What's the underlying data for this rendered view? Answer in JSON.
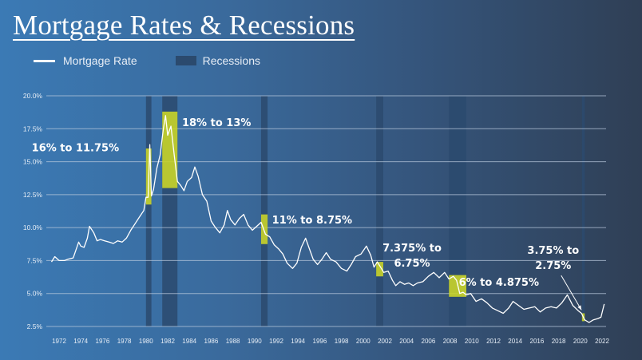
{
  "title": "Mortgage Rates & Recessions",
  "legend": {
    "line_label": "Mortgage Rate",
    "band_label": "Recessions"
  },
  "colors": {
    "line": "#ffffff",
    "recession": "#2b4a6e",
    "highlight": "#c9d42a",
    "grid": "#b8c8dc"
  },
  "chart_data": {
    "type": "line",
    "title": "Mortgage Rates & Recessions",
    "xlabel": "",
    "ylabel": "",
    "ylim": [
      2.5,
      20.0
    ],
    "xlim": [
      1971,
      2022.5
    ],
    "grid": true,
    "legend_position": "top-left",
    "y_ticks": [
      "2.5%",
      "5.0%",
      "7.5%",
      "10.0%",
      "12.5%",
      "15.0%",
      "17.5%",
      "20.0%"
    ],
    "y_tick_values": [
      2.5,
      5.0,
      7.5,
      10.0,
      12.5,
      15.0,
      17.5,
      20.0
    ],
    "x_ticks": [
      "1972",
      "1974",
      "1976",
      "1978",
      "1980",
      "1982",
      "1984",
      "1986",
      "1988",
      "1990",
      "1992",
      "1994",
      "1996",
      "1998",
      "2000",
      "2002",
      "2004",
      "2006",
      "2008",
      "2010",
      "2012",
      "2014",
      "2016",
      "2018",
      "2020",
      "2022"
    ],
    "series": [
      {
        "name": "Mortgage Rate",
        "x": [
          1971.3,
          1971.6,
          1972.0,
          1972.5,
          1972.8,
          1973.3,
          1973.8,
          1974.0,
          1974.3,
          1974.6,
          1974.8,
          1975.2,
          1975.5,
          1975.8,
          1976.2,
          1976.6,
          1977.0,
          1977.4,
          1977.8,
          1978.2,
          1978.6,
          1979.0,
          1979.4,
          1979.8,
          1980.0,
          1980.2,
          1980.35,
          1980.5,
          1980.7,
          1981.0,
          1981.3,
          1981.6,
          1981.8,
          1982.0,
          1982.3,
          1982.6,
          1982.9,
          1983.2,
          1983.5,
          1983.8,
          1984.2,
          1984.5,
          1984.8,
          1985.2,
          1985.6,
          1986.0,
          1986.4,
          1986.8,
          1987.2,
          1987.5,
          1987.8,
          1988.2,
          1988.6,
          1989.0,
          1989.4,
          1989.8,
          1990.2,
          1990.6,
          1991.0,
          1991.4,
          1991.8,
          1992.2,
          1992.6,
          1993.0,
          1993.5,
          1993.9,
          1994.3,
          1994.7,
          1995.0,
          1995.4,
          1995.8,
          1996.2,
          1996.6,
          1997.0,
          1997.5,
          1998.0,
          1998.5,
          1998.9,
          1999.3,
          1999.8,
          2000.3,
          2000.7,
          2001.0,
          2001.3,
          2001.6,
          2001.9,
          2002.3,
          2002.7,
          2003.0,
          2003.4,
          2003.8,
          2004.2,
          2004.6,
          2005.0,
          2005.5,
          2006.0,
          2006.5,
          2007.0,
          2007.5,
          2007.9,
          2008.3,
          2008.6,
          2008.9,
          2009.2,
          2009.5,
          2009.9,
          2010.4,
          2010.9,
          2011.4,
          2011.9,
          2012.4,
          2012.9,
          2013.4,
          2013.8,
          2014.3,
          2014.8,
          2015.3,
          2015.8,
          2016.3,
          2016.8,
          2017.3,
          2017.8,
          2018.3,
          2018.8,
          2019.3,
          2019.8,
          2020.1,
          2020.4,
          2020.8,
          2021.2,
          2021.6,
          2021.9,
          2022.2
        ],
        "values": [
          7.4,
          7.8,
          7.5,
          7.5,
          7.6,
          7.7,
          8.9,
          8.6,
          8.5,
          9.2,
          10.1,
          9.6,
          9.0,
          9.1,
          9.0,
          8.9,
          8.8,
          9.0,
          8.9,
          9.2,
          9.8,
          10.3,
          10.8,
          11.3,
          12.3,
          12.3,
          16.3,
          12.4,
          12.9,
          14.5,
          15.5,
          17.5,
          18.5,
          17.0,
          17.7,
          15.5,
          13.5,
          13.2,
          12.8,
          13.5,
          13.8,
          14.6,
          13.9,
          12.5,
          12.0,
          10.5,
          10.0,
          9.6,
          10.2,
          11.3,
          10.6,
          10.2,
          10.7,
          11.0,
          10.2,
          9.8,
          10.1,
          10.4,
          9.5,
          9.3,
          8.7,
          8.4,
          8.0,
          7.3,
          6.9,
          7.3,
          8.5,
          9.2,
          8.5,
          7.6,
          7.2,
          7.6,
          8.1,
          7.6,
          7.4,
          6.9,
          6.7,
          7.2,
          7.8,
          8.0,
          8.6,
          7.9,
          7.0,
          7.4,
          7.0,
          6.6,
          6.7,
          6.0,
          5.6,
          5.9,
          5.7,
          5.8,
          5.6,
          5.8,
          5.9,
          6.3,
          6.6,
          6.2,
          6.6,
          6.1,
          6.3,
          6.0,
          5.0,
          5.1,
          4.9,
          5.0,
          4.4,
          4.6,
          4.3,
          3.9,
          3.7,
          3.5,
          3.9,
          4.4,
          4.1,
          3.8,
          3.9,
          4.0,
          3.6,
          3.9,
          4.0,
          3.9,
          4.3,
          4.9,
          4.1,
          3.7,
          3.5,
          3.0,
          2.8,
          3.0,
          3.1,
          3.2,
          4.2
        ]
      }
    ],
    "recessions": [
      {
        "start": 1980.0,
        "end": 1980.5
      },
      {
        "start": 1981.5,
        "end": 1982.9
      },
      {
        "start": 1990.6,
        "end": 1991.2
      },
      {
        "start": 2001.2,
        "end": 2001.85
      },
      {
        "start": 2007.9,
        "end": 2009.5
      },
      {
        "start": 2020.15,
        "end": 2020.4
      }
    ],
    "highlights": [
      {
        "start": 1980.0,
        "end": 1980.5,
        "y_low": 11.75,
        "y_high": 16.0
      },
      {
        "start": 1981.5,
        "end": 1982.9,
        "y_low": 13.0,
        "y_high": 18.8
      },
      {
        "start": 1990.6,
        "end": 1991.2,
        "y_low": 8.75,
        "y_high": 11.0
      },
      {
        "start": 2001.2,
        "end": 2001.85,
        "y_low": 6.3,
        "y_high": 7.4
      },
      {
        "start": 2007.9,
        "end": 2009.5,
        "y_low": 4.75,
        "y_high": 6.4
      },
      {
        "start": 2020.15,
        "end": 2020.4,
        "y_low": 2.9,
        "y_high": 3.5
      }
    ],
    "annotations": [
      {
        "lines": [
          "16% to 11.75%"
        ],
        "x": 1973.5,
        "y": 15.8
      },
      {
        "lines": [
          "18% to 13%"
        ],
        "x": 1986.5,
        "y": 17.7
      },
      {
        "lines": [
          "11% to 8.75%"
        ],
        "x": 1995.3,
        "y": 10.3
      },
      {
        "lines": [
          "7.375% to",
          "6.75%"
        ],
        "x": 2004.5,
        "y": 8.2
      },
      {
        "lines": [
          "6% to 4.875%"
        ],
        "x": 2012.5,
        "y": 5.6
      },
      {
        "lines": [
          "3.75% to",
          "2.75%"
        ],
        "x": 2017.5,
        "y": 8.0,
        "arrow_to": [
          2020.1,
          3.75
        ]
      }
    ]
  }
}
